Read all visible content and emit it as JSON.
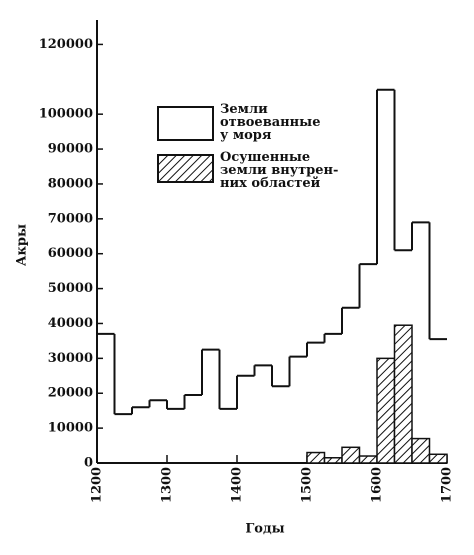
{
  "chart_data": {
    "type": "histogram",
    "bins": [
      1200,
      1225,
      1250,
      1275,
      1300,
      1325,
      1350,
      1375,
      1400,
      1425,
      1450,
      1475,
      1500,
      1525,
      1550,
      1575,
      1600,
      1625,
      1650,
      1675,
      1700
    ],
    "series": [
      {
        "name": "Земли\nотвоеванные\nу моря",
        "color": "#ffffff",
        "values": [
          37000,
          14000,
          16000,
          18000,
          15500,
          19500,
          32500,
          15500,
          25000,
          28000,
          22000,
          30500,
          34500,
          37000,
          44500,
          57000,
          107000,
          61000,
          69000,
          35500
        ]
      },
      {
        "name": "Осушенные\nземли внутрен-\nних областей",
        "color": "hatch",
        "values": [
          0,
          0,
          0,
          0,
          0,
          0,
          0,
          0,
          0,
          0,
          0,
          0,
          3000,
          1500,
          4500,
          2000,
          30000,
          39500,
          7000,
          2500
        ]
      }
    ],
    "xlabel": "Годы",
    "ylabel": "Акры",
    "xlim": [
      1200,
      1700
    ],
    "xticks": [
      1200,
      1300,
      1400,
      1500,
      1600,
      1700
    ],
    "ylim": [
      0,
      127000
    ],
    "yticks": [
      0,
      10000,
      20000,
      30000,
      40000,
      50000,
      60000,
      70000,
      80000,
      90000,
      100000,
      120000
    ],
    "grid": false
  }
}
